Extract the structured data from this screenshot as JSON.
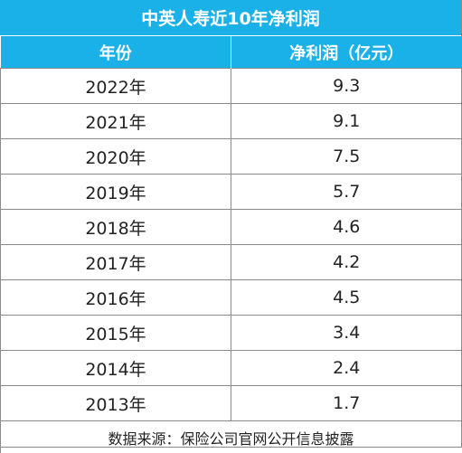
{
  "title": "中英人寿近10年净利润",
  "header": {
    "year": "年份",
    "profit": "净利润（亿元）"
  },
  "rows": [
    {
      "year": "2022年",
      "profit": "9.3"
    },
    {
      "year": "2021年",
      "profit": "9.1"
    },
    {
      "year": "2020年",
      "profit": "7.5"
    },
    {
      "year": "2019年",
      "profit": "5.7"
    },
    {
      "year": "2018年",
      "profit": "4.6"
    },
    {
      "year": "2017年",
      "profit": "4.2"
    },
    {
      "year": "2016年",
      "profit": "4.5"
    },
    {
      "year": "2015年",
      "profit": "3.4"
    },
    {
      "year": "2014年",
      "profit": "2.4"
    },
    {
      "year": "2013年",
      "profit": "1.7"
    }
  ],
  "footer": "数据来源：保险公司官网公开信息披露",
  "colors": {
    "header_bg": "#1ab0e8",
    "header_text": "#ffffff",
    "border": "#8a8a8a"
  }
}
